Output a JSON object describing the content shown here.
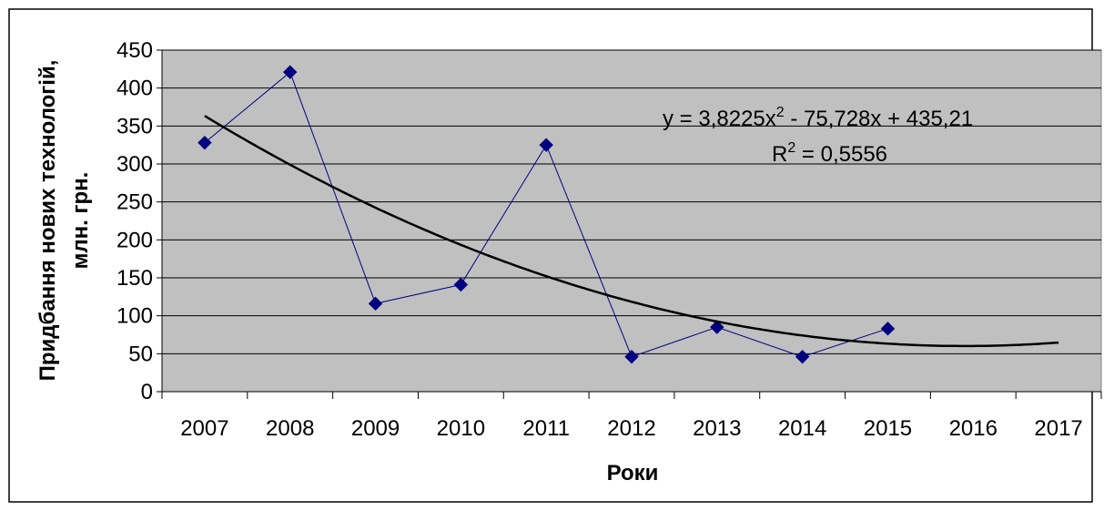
{
  "chart_data": {
    "type": "line",
    "title": "",
    "xlabel": "Роки",
    "ylabel": [
      "Придбання нових технологій,",
      "млн. грн."
    ],
    "categories": [
      "2007",
      "2008",
      "2009",
      "2010",
      "2011",
      "2012",
      "2013",
      "2014",
      "2015",
      "2016",
      "2017"
    ],
    "series": [
      {
        "values": [
          328,
          421,
          116,
          141,
          325,
          46,
          85,
          46,
          83,
          null,
          null
        ]
      }
    ],
    "trendline": {
      "type": "polynomial-order-2",
      "equation_parts": [
        "y = 3,8225x",
        "2",
        " - 75,728x + 435,21"
      ],
      "r2_parts": [
        "R",
        "2",
        " = 0,5556"
      ],
      "coefficients": {
        "a": 3.8225,
        "b": -75.728,
        "c": 435.21
      }
    },
    "ylim": [
      0,
      450
    ],
    "yticks": [
      "0",
      "50",
      "100",
      "150",
      "200",
      "250",
      "300",
      "350",
      "400",
      "450"
    ],
    "grid": true,
    "legend": "none",
    "colors": {
      "plot_background": "#c0c0c0",
      "series_line": "#000080",
      "marker": "#000080",
      "trendline": "#000000",
      "gridline": "#000000"
    }
  }
}
